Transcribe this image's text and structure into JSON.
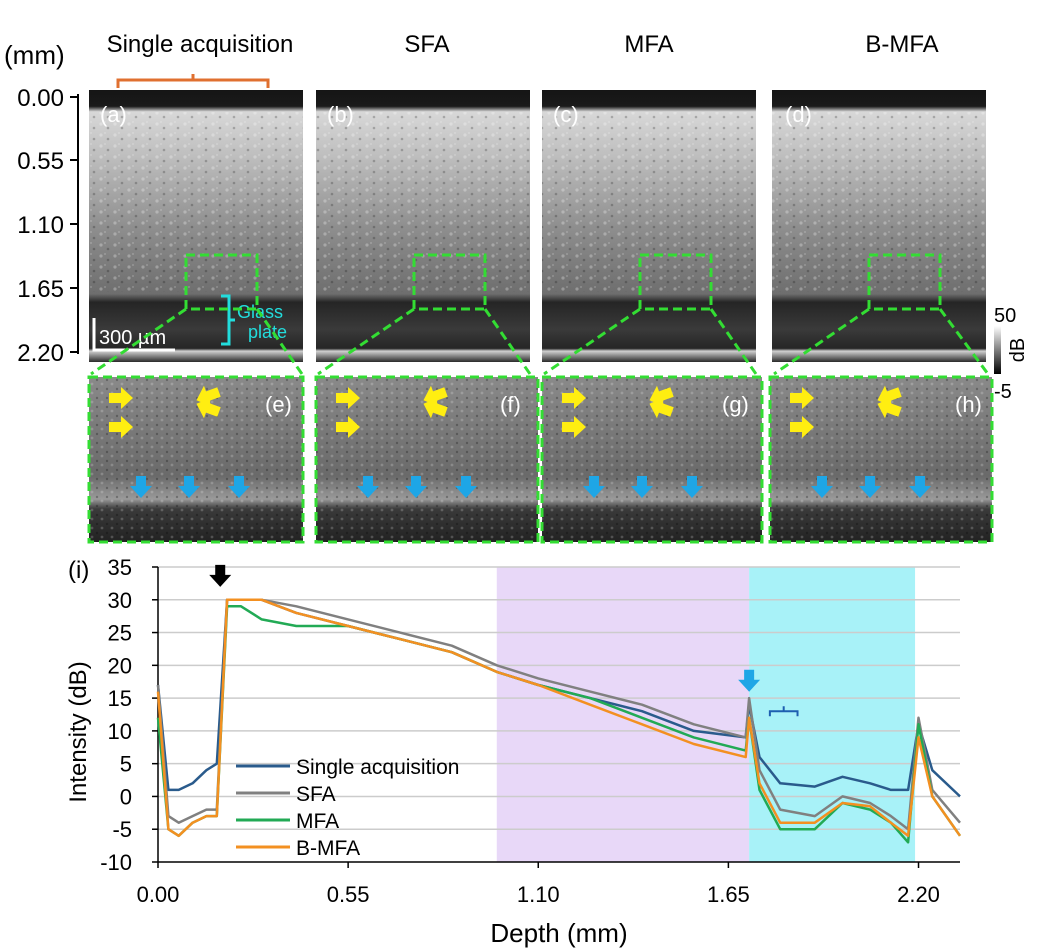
{
  "figure": {
    "unit_label": "(mm)",
    "depth_ticks": [
      "0.00",
      "0.55",
      "1.10",
      "1.65",
      "2.20"
    ],
    "scale_bar_label": "300 µm",
    "glass_plate_label_1": "Glass",
    "glass_plate_label_2": "plate",
    "colorbar": {
      "max": "50",
      "min": "-5",
      "unit": "dB"
    },
    "panels": [
      {
        "title": "Single acquisition",
        "letter": "(a)",
        "zoom_letter": "(e)"
      },
      {
        "title": "SFA",
        "letter": "(b)",
        "zoom_letter": "(f)"
      },
      {
        "title": "MFA",
        "letter": "(c)",
        "zoom_letter": "(g)"
      },
      {
        "title": "B-MFA",
        "letter": "(d)",
        "zoom_letter": "(h)"
      }
    ],
    "colors": {
      "zoom_box": "#33dd33",
      "glass_bracket": "#22dddd",
      "yellow_arrow": "#ffee11",
      "blue_arrow": "#1ea6e6",
      "orange_bracket": "#e07030"
    }
  },
  "chart_data": {
    "type": "line",
    "panel_label": "(i)",
    "title": "",
    "xlabel": "Depth (mm)",
    "ylabel": "Intensity (dB)",
    "xlim": [
      0,
      2.32
    ],
    "ylim": [
      -10,
      35
    ],
    "x_ticks": [
      0.0,
      0.55,
      1.1,
      1.65,
      2.2
    ],
    "x_tick_labels": [
      "0.00",
      "0.55",
      "1.10",
      "1.65",
      "2.20"
    ],
    "y_ticks": [
      -10,
      -5,
      0,
      5,
      10,
      15,
      20,
      25,
      30,
      35
    ],
    "grid": true,
    "legend": "bottom-left",
    "shaded_regions": [
      {
        "x0": 0.98,
        "x1": 1.71,
        "color": "#e8d8f8"
      },
      {
        "x0": 1.71,
        "x1": 2.19,
        "color": "#a8f2f8"
      }
    ],
    "markers": [
      {
        "type": "black-arrow",
        "x": 0.18,
        "y": 33.5
      },
      {
        "type": "blue-arrow",
        "x": 1.71,
        "y": 17.5
      }
    ],
    "x": [
      0.0,
      0.03,
      0.06,
      0.1,
      0.14,
      0.17,
      0.2,
      0.24,
      0.3,
      0.4,
      0.55,
      0.7,
      0.85,
      0.98,
      1.1,
      1.25,
      1.4,
      1.55,
      1.7,
      1.71,
      1.74,
      1.8,
      1.9,
      1.98,
      2.06,
      2.12,
      2.17,
      2.2,
      2.24,
      2.32
    ],
    "series": [
      {
        "name": "Single acquisition",
        "color": "#2a5b8c",
        "values": [
          17,
          1,
          1,
          2,
          4,
          5,
          30,
          30,
          30,
          28,
          26,
          24,
          22,
          19,
          17,
          15,
          13,
          10,
          9,
          14,
          6,
          2,
          1.5,
          3,
          2,
          1,
          1,
          11,
          4,
          0
        ]
      },
      {
        "name": "SFA",
        "color": "#808080",
        "values": [
          17,
          -3,
          -4,
          -3,
          -2,
          -2,
          30,
          30,
          30,
          29,
          27,
          25,
          23,
          20,
          18,
          16,
          14,
          11,
          9,
          15,
          4,
          -2,
          -3,
          0,
          -1,
          -3,
          -5,
          12,
          1,
          -4
        ]
      },
      {
        "name": "MFA",
        "color": "#22aa55",
        "values": [
          12,
          -5,
          -6,
          -4,
          -3,
          -3,
          29,
          29,
          27,
          26,
          26,
          24,
          22,
          19,
          17,
          15,
          12,
          9,
          7,
          12,
          1,
          -5,
          -5,
          -1,
          -2,
          -4,
          -7,
          11,
          0,
          -6
        ]
      },
      {
        "name": "B-MFA",
        "color": "#f39021",
        "values": [
          16,
          -5,
          -6,
          -4,
          -3,
          -3,
          30,
          30,
          30,
          28,
          26,
          24,
          22,
          19,
          17,
          14,
          11,
          8,
          6,
          12,
          2,
          -4,
          -4,
          -1,
          -1.5,
          -4,
          -6,
          9,
          0,
          -6
        ]
      }
    ]
  }
}
